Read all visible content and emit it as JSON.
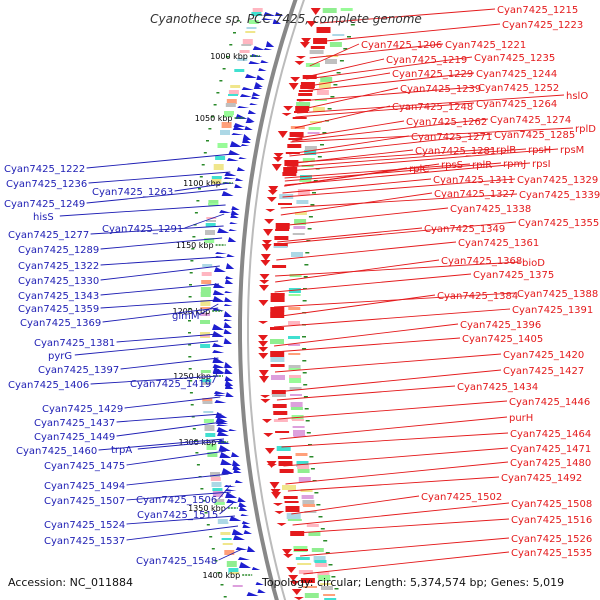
{
  "title": "Cyanothece sp. PCC 7425, complete genome",
  "footer": {
    "accession": "Accession: NC_011884",
    "topology": "Topology: circular; Length: 5,374,574 bp; Genes: 5,019"
  },
  "kbp_labels": [
    "1000 kbp",
    "1050 kbp",
    "1100 kbp",
    "1150 kbp",
    "1200 kbp",
    "1250 kbp",
    "1300 kbp",
    "1350 kbp",
    "1400 kbp"
  ],
  "right_labels": [
    "Cyan7425_1215",
    "Cyan7425_1223",
    "Cyan7425_1206",
    "Cyan7425_1221",
    "Cyan7425_1219",
    "Cyan7425_1235",
    "Cyan7425_1229",
    "Cyan7425_1244",
    "Cyan7425_1239",
    "Cyan7425_1252",
    "hslO",
    "Cyan7425_1248",
    "Cyan7425_1264",
    "Cyan7425_1262",
    "Cyan7425_1274",
    "rplD",
    "Cyan7425_1271",
    "Cyan7425_1285",
    "rplB",
    "rpsH",
    "rpsM",
    "Cyan7425_1281",
    "rplC",
    "rpsS",
    "rplR",
    "rpmJ",
    "rpsI",
    "Cyan7425_1311",
    "Cyan7425_1329",
    "Cyan7425_1327",
    "Cyan7425_1339",
    "Cyan7425_1338",
    "Cyan7425_1355",
    "Cyan7425_1349",
    "Cyan7425_1361",
    "Cyan7425_1368",
    "bioD",
    "Cyan7425_1375",
    "Cyan7425_1384",
    "Cyan7425_1388",
    "Cyan7425_1391",
    "Cyan7425_1396",
    "Cyan7425_1405",
    "Cyan7425_1420",
    "Cyan7425_1427",
    "Cyan7425_1434",
    "Cyan7425_1446",
    "purH",
    "Cyan7425_1464",
    "Cyan7425_1471",
    "Cyan7425_1480",
    "Cyan7425_1492",
    "Cyan7425_1502",
    "Cyan7425_1508",
    "Cyan7425_1516",
    "Cyan7425_1526",
    "Cyan7425_1535"
  ],
  "left_labels": [
    "Cyan7425_1222",
    "Cyan7425_1236",
    "Cyan7425_1263",
    "Cyan7425_1249",
    "hisS",
    "Cyan7425_1277",
    "Cyan7425_1291",
    "Cyan7425_1289",
    "Cyan7425_1322",
    "Cyan7425_1330",
    "Cyan7425_1343",
    "Cyan7425_1359",
    "Cyan7425_1369",
    "glmM",
    "Cyan7425_1381",
    "pyrG",
    "Cyan7425_1397",
    "Cyan7425_1406",
    "Cyan7425_1419",
    "Cyan7425_1429",
    "Cyan7425_1437",
    "Cyan7425_1449",
    "Cyan7425_1460",
    "trpA",
    "Cyan7425_1475",
    "Cyan7425_1494",
    "Cyan7425_1507",
    "Cyan7425_1506",
    "Cyan7425_1515",
    "Cyan7425_1524",
    "Cyan7425_1537",
    "Cyan7425_1548"
  ],
  "colors": {
    "forward": "#e41a1c",
    "reverse": "#1f1fb4",
    "backbone": "#999999"
  }
}
